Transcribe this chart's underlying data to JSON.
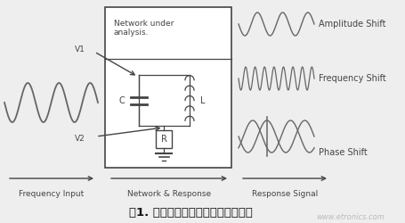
{
  "bg_color": "#eeeeee",
  "title_text": "图1. 具有复数阻抗特性的传感器模型",
  "title_color": "#111111",
  "watermark": "www.etronics.com",
  "watermark_color": "#bbbbbb",
  "labels": {
    "freq_input": "Frequency Input",
    "network_response": "Network & Response",
    "response_signal": "Response Signal",
    "amplitude_shift": "Amplitude Shift",
    "frequency_shift": "Frequency Shift",
    "phase_shift": "Phase Shift",
    "network_under": "Network under\nanalysis.",
    "v1": "V1",
    "v2": "V2",
    "c": "C",
    "l": "L",
    "r": "R"
  },
  "colors": {
    "signal": "#666666",
    "box": "#444444",
    "arrow": "#444444",
    "label_text": "#444444",
    "component_text": "#444444"
  }
}
